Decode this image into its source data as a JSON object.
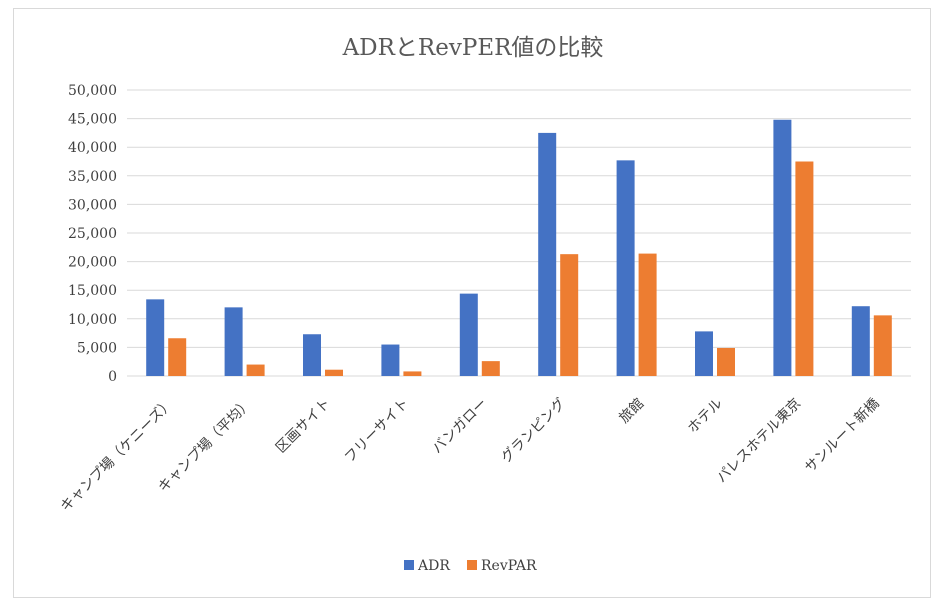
{
  "chart_data": {
    "type": "bar",
    "title": "ADRとRevPER値の比較",
    "xlabel": "",
    "ylabel": "",
    "ylim": [
      0,
      50000
    ],
    "yticks": [
      "0",
      "5,000",
      "10,000",
      "15,000",
      "20,000",
      "25,000",
      "30,000",
      "35,000",
      "40,000",
      "45,000",
      "50,000"
    ],
    "grid": true,
    "legend_position": "bottom",
    "categories": [
      "キャンプ場（ケニーズ）",
      "キャンプ場（平均）",
      "区画サイト",
      "フリーサイト",
      "バンガロー",
      "グランピング",
      "旅館",
      "ホテル",
      "パレスホテル東京",
      "サンルート新橋"
    ],
    "series": [
      {
        "name": "ADR",
        "color": "#4472c4",
        "values": [
          13400,
          12000,
          7300,
          5500,
          14400,
          42500,
          37700,
          7800,
          44800,
          12200
        ]
      },
      {
        "name": "RevPAR",
        "color": "#ed7d31",
        "values": [
          6600,
          2000,
          1100,
          800,
          2600,
          21300,
          21400,
          4900,
          37500,
          10600
        ]
      }
    ]
  }
}
